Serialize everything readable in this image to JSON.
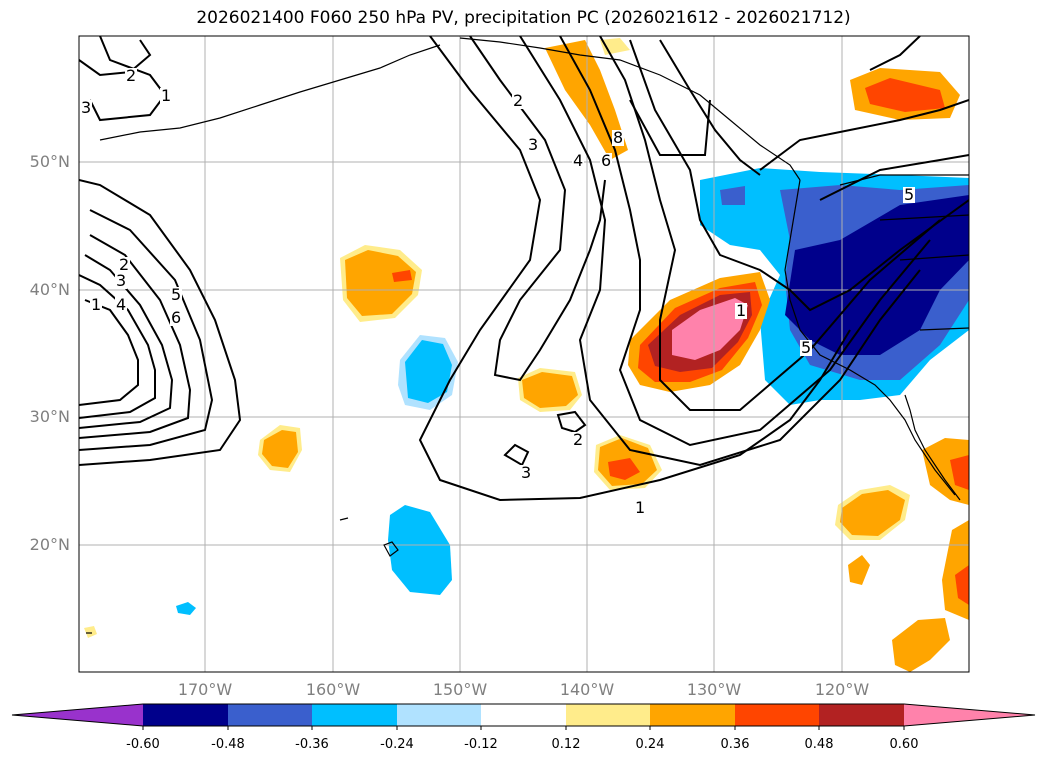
{
  "title": "2026021400 F060 250 hPa PV, precipitation PC (2026021612 - 2026021712)",
  "lat_labels": [
    "50°N",
    "40°N",
    "30°N",
    "20°N"
  ],
  "lon_labels": [
    "170°W",
    "160°W",
    "150°W",
    "140°W",
    "130°W",
    "120°W"
  ],
  "contour_labels": [
    "1",
    "2",
    "3",
    "1",
    "2",
    "3",
    "4",
    "5",
    "6",
    "2",
    "3",
    "4",
    "6",
    "8",
    "1",
    "2",
    "3",
    "1",
    "5",
    "5"
  ],
  "colorbar": {
    "ticks": [
      "-0.60",
      "-0.48",
      "-0.36",
      "-0.24",
      "-0.12",
      "0.12",
      "0.24",
      "0.36",
      "0.48",
      "0.60"
    ],
    "colors": [
      "#9932cc",
      "#00008b",
      "#3a5fcd",
      "#00bfff",
      "#b0e2ff",
      "#ffffff",
      "#ffec8b",
      "#ffa500",
      "#ff4500",
      "#b22222",
      "#ff82ab"
    ]
  },
  "colors": {
    "land_outline": "#000000",
    "pv_contour": "#000000",
    "grid": "#b0b0b0",
    "axis_label": "#808080"
  }
}
